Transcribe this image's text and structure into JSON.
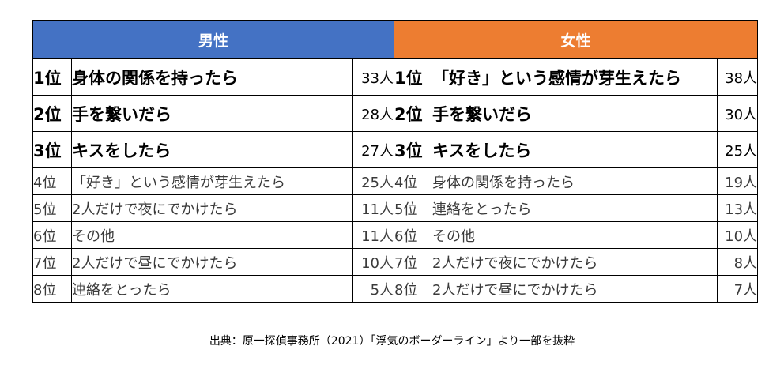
{
  "headers": {
    "male": "男性",
    "female": "女性"
  },
  "rows": [
    {
      "m_rank": "1位",
      "m_item": "身体の関係を持ったら",
      "m_count": "33人",
      "f_rank": "1位",
      "f_item": "「好き」という感情が芽生えたら",
      "f_count": "38人"
    },
    {
      "m_rank": "2位",
      "m_item": "手を繋いだら",
      "m_count": "28人",
      "f_rank": "2位",
      "f_item": "手を繋いだら",
      "f_count": "30人"
    },
    {
      "m_rank": "3位",
      "m_item": "キスをしたら",
      "m_count": "27人",
      "f_rank": "3位",
      "f_item": "キスをしたら",
      "f_count": "25人"
    },
    {
      "m_rank": "4位",
      "m_item": "「好き」という感情が芽生えたら",
      "m_count": "25人",
      "f_rank": "4位",
      "f_item": "身体の関係を持ったら",
      "f_count": "19人"
    },
    {
      "m_rank": "5位",
      "m_item": "2人だけで夜にでかけたら",
      "m_count": "11人",
      "f_rank": "5位",
      "f_item": "連絡をとったら",
      "f_count": "13人"
    },
    {
      "m_rank": "6位",
      "m_item": "その他",
      "m_count": "11人",
      "f_rank": "6位",
      "f_item": "その他",
      "f_count": "10人"
    },
    {
      "m_rank": "7位",
      "m_item": "2人だけで昼にでかけたら",
      "m_count": "10人",
      "f_rank": "7位",
      "f_item": "2人だけで夜にでかけたら",
      "f_count": "8人"
    },
    {
      "m_rank": "8位",
      "m_item": "連絡をとったら",
      "m_count": "5人",
      "f_rank": "8位",
      "f_item": "2人だけで昼にでかけたら",
      "f_count": "7人"
    }
  ],
  "caption": "出典：原一探偵事務所（2021）「浮気のボーダーライン」より一部を抜粋"
}
